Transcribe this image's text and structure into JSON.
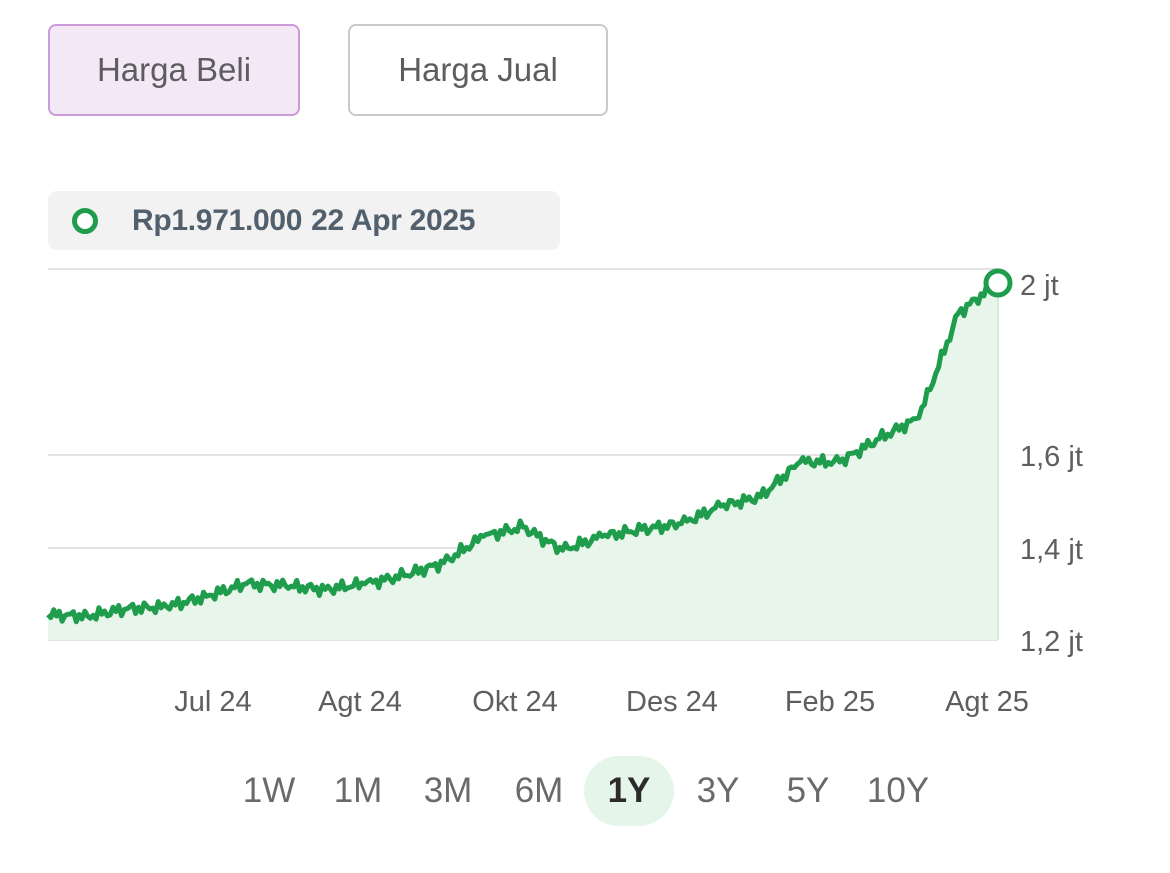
{
  "price_tabs": [
    {
      "label": "Harga Beli",
      "active": true
    },
    {
      "label": "Harga Jual",
      "active": false
    }
  ],
  "tooltip": {
    "price": "Rp1.971.000",
    "date": "22 Apr 2025"
  },
  "colors": {
    "line": "#1f9d4d",
    "area": "#e8f5ea",
    "active_tab_bg": "#f3e8f6",
    "active_tab_border": "#cc9ad8",
    "active_range_bg": "#e6f5ea"
  },
  "ranges": [
    {
      "label": "1W",
      "active": false
    },
    {
      "label": "1M",
      "active": false
    },
    {
      "label": "3M",
      "active": false
    },
    {
      "label": "6M",
      "active": false
    },
    {
      "label": "1Y",
      "active": true
    },
    {
      "label": "3Y",
      "active": false
    },
    {
      "label": "5Y",
      "active": false
    },
    {
      "label": "10Y",
      "active": false
    }
  ],
  "chart_data": {
    "type": "area",
    "title": "",
    "xlabel": "",
    "ylabel": "",
    "ylim": [
      1200000,
      2000000
    ],
    "y_ticks": [
      {
        "value": 1200000,
        "label": "1,2 jt"
      },
      {
        "value": 1400000,
        "label": "1,4 jt"
      },
      {
        "value": 1600000,
        "label": "1,6 jt"
      },
      {
        "value": 2000000,
        "label": "2 jt"
      }
    ],
    "x_ticks": [
      "Jul 24",
      "Agt 24",
      "Okt 24",
      "Des 24",
      "Feb 25",
      "Agt 25"
    ],
    "grid": true,
    "legend": "none",
    "x": [
      "2024-05",
      "2024-06",
      "2024-06",
      "2024-07",
      "2024-07",
      "2024-08",
      "2024-08",
      "2024-09",
      "2024-09",
      "2024-10",
      "2024-10",
      "2024-10",
      "2024-11",
      "2024-11",
      "2024-12",
      "2024-12",
      "2025-01",
      "2025-01",
      "2025-02",
      "2025-02",
      "2025-03",
      "2025-03",
      "2025-03",
      "2025-04",
      "2025-04"
    ],
    "series": [
      {
        "values": [
          1255000,
          1252000,
          1268000,
          1272000,
          1295000,
          1322000,
          1318000,
          1310000,
          1322000,
          1340000,
          1368000,
          1425000,
          1445000,
          1395000,
          1425000,
          1440000,
          1452000,
          1490000,
          1510000,
          1585000,
          1585000,
          1635000,
          1680000,
          1905000,
          1971000
        ]
      }
    ],
    "highlight": {
      "date": "22 Apr 2025",
      "value": 1971000
    }
  }
}
